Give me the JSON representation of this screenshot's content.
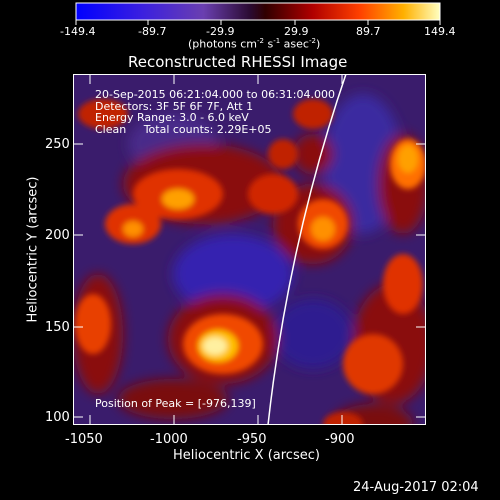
{
  "colorbar": {
    "tick_labels": [
      "-149.4",
      "-89.7",
      "-29.9",
      "29.9",
      "89.7",
      "149.4"
    ],
    "units_prefix": "(photons cm",
    "units_exp1": "-2",
    "units_mid": " s",
    "units_exp2": "-1",
    "units_mid2": " asec",
    "units_exp3": "-2",
    "units_suffix": ")"
  },
  "title": "Reconstructed RHESSI Image",
  "info_lines": [
    "20-Sep-2015 06:21:04.000 to 06:31:04.000",
    "Detectors: 3F 5F 6F 7F, Att 1",
    "Energy Range: 3.0 - 6.0 keV",
    "Clean     Total counts: 2.29E+05"
  ],
  "peak_text": "Position of Peak = [-976,139]",
  "x_axis": {
    "label": "Heliocentric X (arcsec)",
    "ticks": [
      "-1050",
      "-1000",
      "-950",
      "-900"
    ]
  },
  "y_axis": {
    "label": "Heliocentric Y (arcsec)",
    "ticks": [
      "100",
      "150",
      "200",
      "250"
    ]
  },
  "footer_date": "24-Aug-2017 02:04"
}
